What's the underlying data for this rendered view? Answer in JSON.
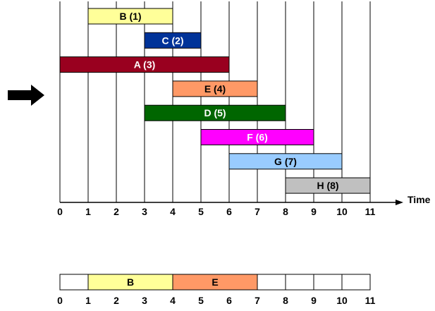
{
  "arrow": {
    "icon": "right-arrow-icon",
    "color": "#000000"
  },
  "timeline": {
    "ticks": [
      "0",
      "1",
      "2",
      "3",
      "4",
      "5",
      "6",
      "7",
      "8",
      "9",
      "10",
      "11"
    ],
    "axis_label": "Time",
    "min": 0,
    "max": 11
  },
  "intervals": [
    {
      "label": "B (1)",
      "start": 1,
      "end": 4,
      "fill": "#FFFF99",
      "text_color": "#000000"
    },
    {
      "label": "C (2)",
      "start": 3,
      "end": 5,
      "fill": "#003399",
      "text_color": "#FFFFFF"
    },
    {
      "label": "A (3)",
      "start": 0,
      "end": 6,
      "fill": "#99001F",
      "text_color": "#FFFFFF"
    },
    {
      "label": "E (4)",
      "start": 4,
      "end": 7,
      "fill": "#FF9966",
      "text_color": "#000000"
    },
    {
      "label": "D (5)",
      "start": 3,
      "end": 8,
      "fill": "#006600",
      "text_color": "#FFFFFF"
    },
    {
      "label": "F (6)",
      "start": 5,
      "end": 9,
      "fill": "#FF00FF",
      "text_color": "#FFFFFF"
    },
    {
      "label": "G (7)",
      "start": 6,
      "end": 10,
      "fill": "#99CCFF",
      "text_color": "#000000"
    },
    {
      "label": "H (8)",
      "start": 8,
      "end": 11,
      "fill": "#C0C0C0",
      "text_color": "#000000"
    }
  ],
  "selected": {
    "ticks": [
      "0",
      "1",
      "2",
      "3",
      "4",
      "5",
      "6",
      "7",
      "8",
      "9",
      "10",
      "11"
    ],
    "blocks": [
      {
        "label": "B",
        "start": 1,
        "end": 4,
        "fill": "#FFFF99"
      },
      {
        "label": "E",
        "start": 4,
        "end": 7,
        "fill": "#FF9966"
      }
    ]
  }
}
